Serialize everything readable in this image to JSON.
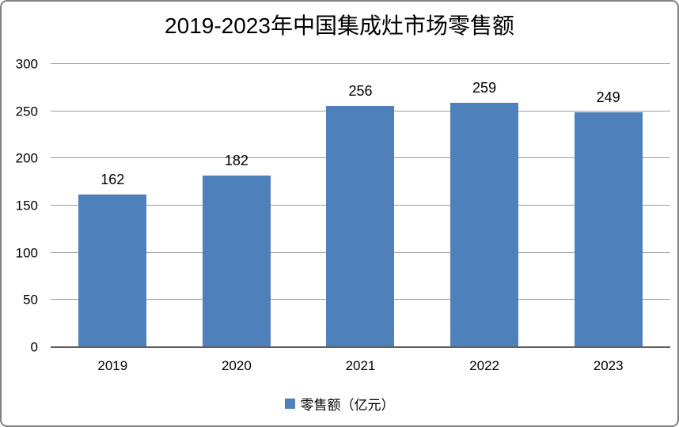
{
  "chart_data": {
    "type": "bar",
    "title": "2019-2023年中国集成灶市场零售额",
    "categories": [
      "2019",
      "2020",
      "2021",
      "2022",
      "2023"
    ],
    "series": [
      {
        "name": "零售额（亿元）",
        "values": [
          162,
          182,
          256,
          259,
          249
        ]
      }
    ],
    "data_labels": [
      162,
      182,
      256,
      259,
      249
    ],
    "xlabel": "",
    "ylabel": "",
    "ylim": [
      0,
      300
    ],
    "y_ticks": [
      0,
      50,
      100,
      150,
      200,
      250,
      300
    ],
    "grid": "horizontal",
    "legend_position": "bottom",
    "legend_entries": [
      "零售额（亿元）"
    ],
    "colors": {
      "bar": "#4E80BC",
      "gridline": "#9B9B9B",
      "axis_line": "#606060",
      "text": "#000000",
      "frame_border": "#808080",
      "background": "#FFFFFF"
    }
  }
}
